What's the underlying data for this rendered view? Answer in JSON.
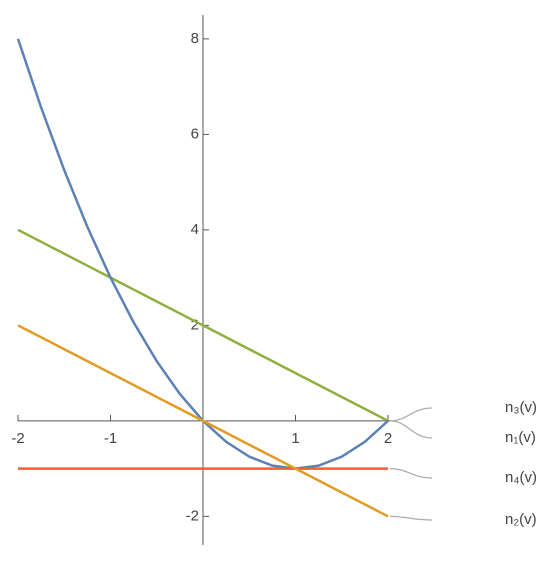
{
  "chart_data": {
    "type": "line",
    "x": [
      -2,
      -1.75,
      -1.5,
      -1.25,
      -1,
      -0.75,
      -0.5,
      -0.25,
      0,
      0.25,
      0.5,
      0.75,
      1,
      1.25,
      1.5,
      1.75,
      2
    ],
    "series": [
      {
        "name": "n₃(v)",
        "color": "#8fb03e",
        "values": [
          4,
          3.75,
          3.5,
          3.25,
          3,
          2.75,
          2.5,
          2.25,
          2,
          1.75,
          1.5,
          1.25,
          1,
          0.75,
          0.5,
          0.25,
          0
        ]
      },
      {
        "name": "n₁(v)",
        "color": "#5e81b5",
        "values": [
          8,
          6.5625,
          5.25,
          4.0625,
          3,
          2.0625,
          1.25,
          0.5625,
          0,
          -0.4375,
          -0.75,
          -0.9375,
          -1,
          -0.9375,
          -0.75,
          -0.4375,
          0
        ]
      },
      {
        "name": "n₄(v)",
        "color": "#eb6235",
        "values": [
          -1,
          -1,
          -1,
          -1,
          -1,
          -1,
          -1,
          -1,
          -1,
          -1,
          -1,
          -1,
          -1,
          -1,
          -1,
          -1,
          -1
        ]
      },
      {
        "name": "n₂(v)",
        "color": "#e19c24",
        "values": [
          2,
          1.75,
          1.5,
          1.25,
          1,
          0.75,
          0.5,
          0.25,
          0,
          -0.25,
          -0.5,
          -0.75,
          -1,
          -1.25,
          -1.5,
          -1.75,
          -2
        ]
      }
    ],
    "xlim": [
      -2,
      2
    ],
    "ylim": [
      -2.6,
      8.5
    ],
    "xticks": [
      -2,
      -1,
      1,
      2
    ],
    "yticks": [
      -2,
      2,
      4,
      6,
      8
    ]
  }
}
